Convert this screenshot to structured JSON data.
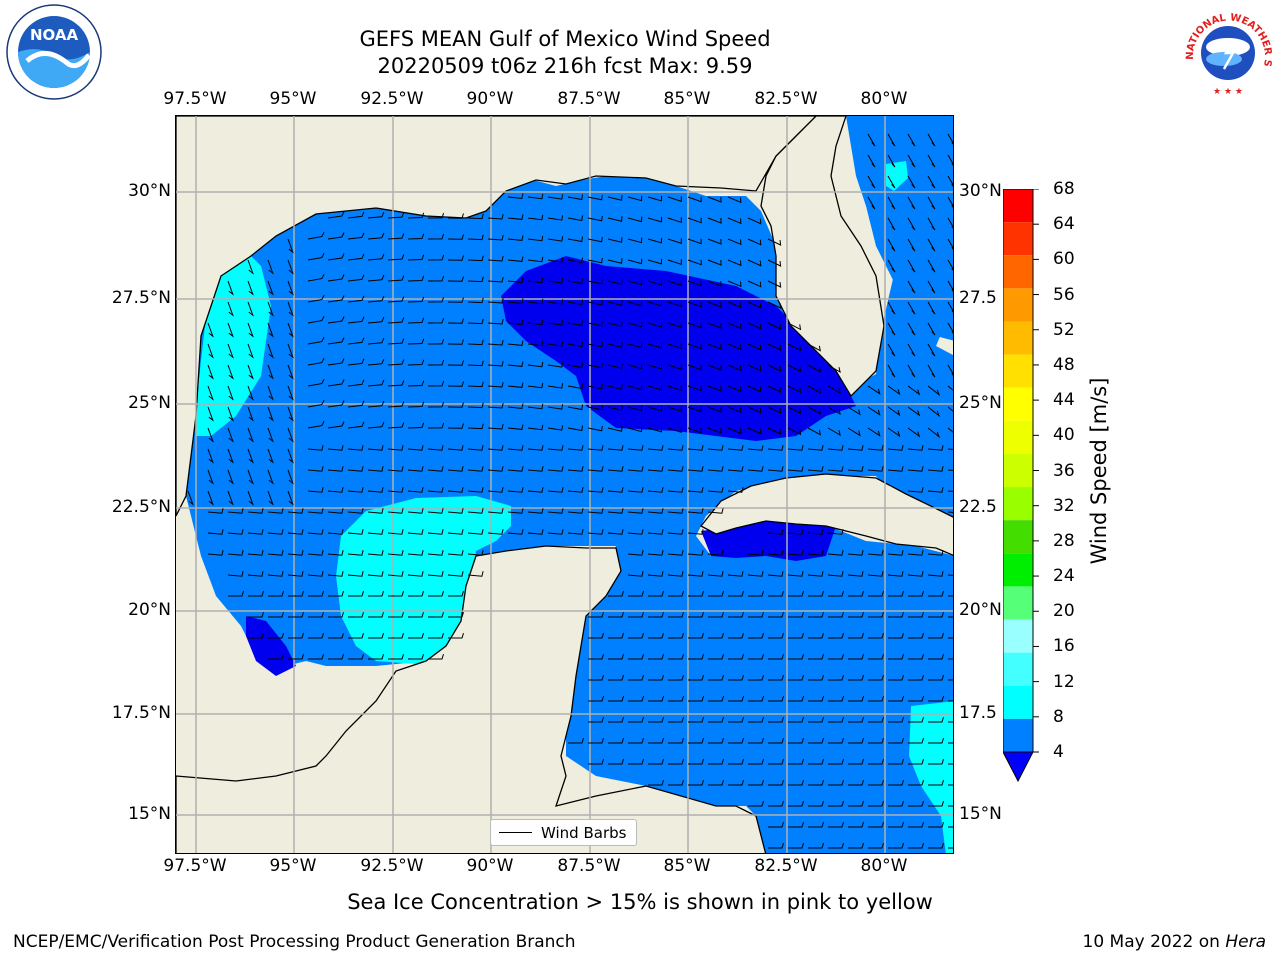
{
  "header": {
    "title_line1": "GEFS MEAN Gulf of Mexico Wind Speed",
    "title_line2": "20220509 t06z 216h fcst   Max: 9.59"
  },
  "map": {
    "lon_ticks": [
      "97.5°W",
      "95°W",
      "92.5°W",
      "90°W",
      "87.5°W",
      "85°W",
      "82.5°W",
      "80°W"
    ],
    "lat_ticks_left": [
      "30°N",
      "27.5°N",
      "25°N",
      "22.5°N",
      "20°N",
      "17.5°N",
      "15°N"
    ],
    "lat_ticks_right": [
      "30°N",
      "27.5",
      "25°N",
      "22.5",
      "20°N",
      "17.5",
      "15°N"
    ],
    "legend_label": "Wind Barbs",
    "colors": {
      "land": "#efedde",
      "speed_4_8": "#0080ff",
      "speed_8_12": "#00ffff",
      "speed_below_4": "#0000ee",
      "gridline": "#b0b0b0"
    }
  },
  "colorbar": {
    "label": "Wind Speed [m/s]",
    "levels": [
      "68",
      "64",
      "60",
      "56",
      "52",
      "48",
      "44",
      "40",
      "36",
      "32",
      "28",
      "24",
      "20",
      "16",
      "12",
      "8",
      "4"
    ],
    "colors": [
      "#ff0000",
      "#ff3300",
      "#ff6600",
      "#ff9900",
      "#ffbb00",
      "#ffe000",
      "#ffff00",
      "#eeff00",
      "#ccff00",
      "#99ff00",
      "#44dd00",
      "#00ee00",
      "#55ff77",
      "#99ffff",
      "#44ffff",
      "#00ffff",
      "#0080ff"
    ],
    "under_color": "#0000ff"
  },
  "footer": {
    "note": "Sea Ice Concentration > 15% is shown in pink to yellow",
    "credit": "NCEP/EMC/Verification Post Processing Product Generation Branch",
    "date_prefix": "10 May 2022 on ",
    "date_machine": "Hera"
  },
  "logos": {
    "noaa_text": "NOAA",
    "nws_text": "NATIONAL WEATHER SERVICE"
  }
}
